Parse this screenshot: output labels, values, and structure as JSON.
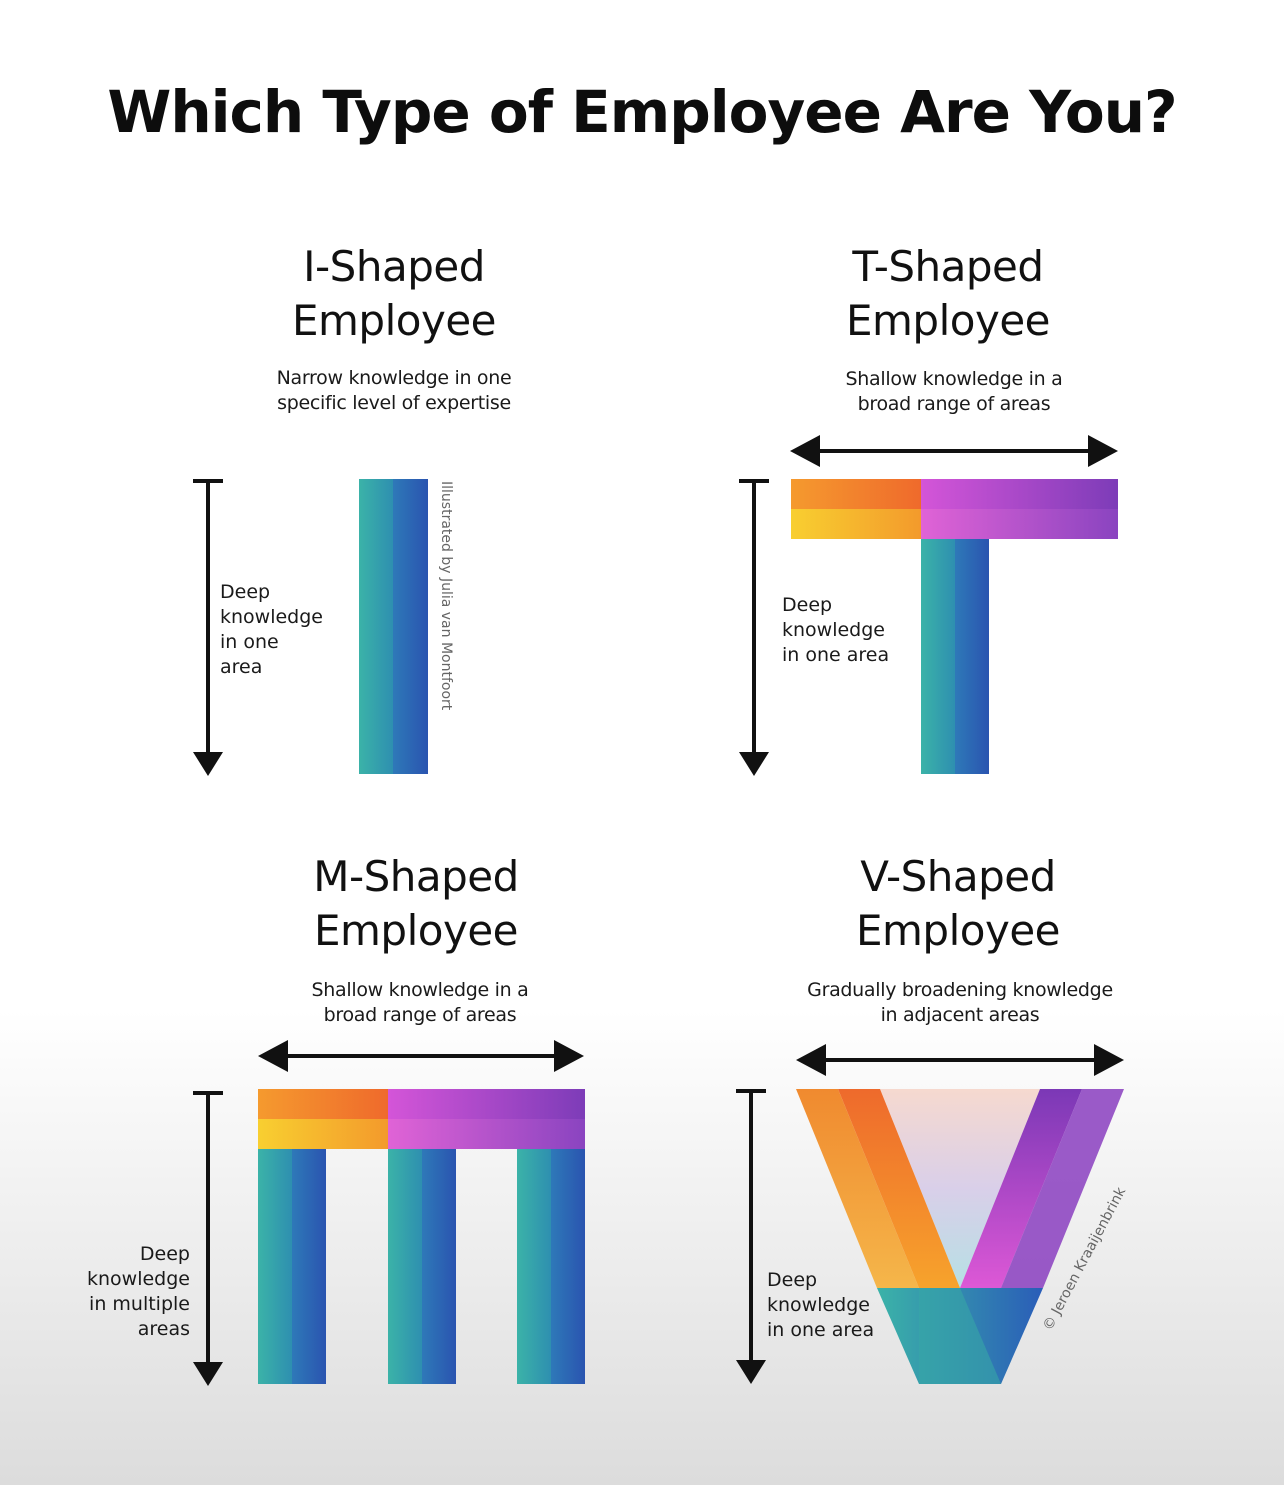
{
  "title": "Which Type of Employee Are You?",
  "panels": {
    "i_shaped": {
      "heading": [
        "I-Shaped",
        "Employee"
      ],
      "description": [
        "Narrow knowledge in one",
        "specific level of expertise"
      ],
      "depth_label": [
        "Deep",
        "knowledge",
        "in one",
        "area"
      ]
    },
    "t_shaped": {
      "heading": [
        "T-Shaped",
        "Employee"
      ],
      "description": [
        "Shallow knowledge in a",
        "broad range of areas"
      ],
      "depth_label": [
        "Deep",
        "knowledge",
        "in one area"
      ]
    },
    "m_shaped": {
      "heading": [
        "M-Shaped",
        "Employee"
      ],
      "description": [
        "Shallow knowledge in a",
        "broad range of areas"
      ],
      "depth_label": [
        "Deep",
        "knowledge",
        "in multiple",
        "areas"
      ]
    },
    "v_shaped": {
      "heading": [
        "V-Shaped",
        "Employee"
      ],
      "description": [
        "Gradually broadening knowledge",
        "in adjacent areas"
      ],
      "depth_label": [
        "Deep",
        "knowledge",
        "in one area"
      ]
    }
  },
  "credits": {
    "illustrator": "Illustrated by Julia van Montfoort",
    "copyright": "© Jeroen Kraaijenbrink"
  },
  "colors": {
    "teal": "#3bb3a8",
    "blue": "#2a5db8",
    "orange": "#f58a2a",
    "yellow": "#f7c52e",
    "magenta": "#d44fd6",
    "purple": "#7a3bb8",
    "red_orange": "#ec5a2e",
    "arrow": "#111111"
  }
}
